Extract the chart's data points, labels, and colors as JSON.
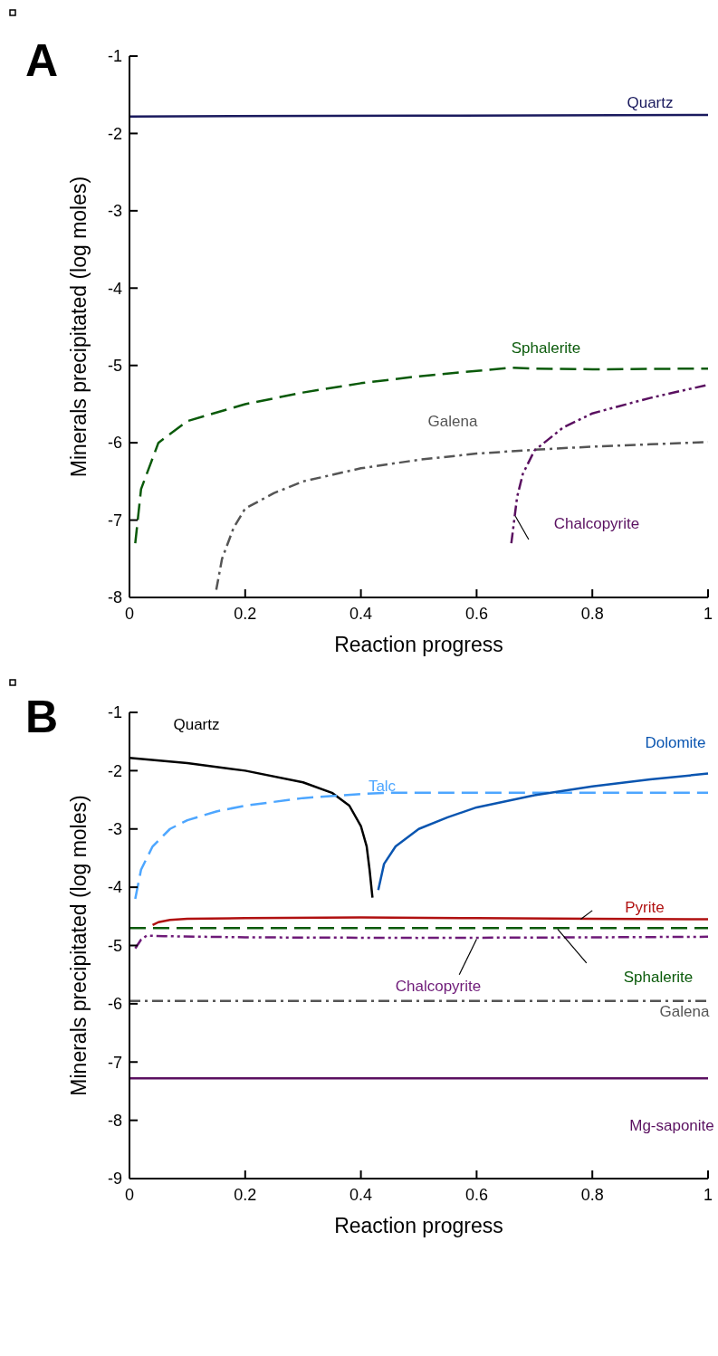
{
  "chart_data": [
    {
      "type": "line",
      "title": "A",
      "xlabel": "Reaction progress",
      "ylabel": "Minerals precipitated (log moles)",
      "xlim": [
        0,
        1
      ],
      "ylim": [
        -8,
        -1
      ],
      "xticks": [
        0,
        0.2,
        0.4,
        0.6,
        0.8,
        1
      ],
      "yticks": [
        -8,
        -7,
        -6,
        -5,
        -4,
        -3,
        -2,
        -1
      ],
      "series": [
        {
          "name": "Quartz",
          "color": "#1a1a5e",
          "line_style": "solid",
          "x": [
            0,
            0.5,
            1
          ],
          "values": [
            -1.78,
            -1.77,
            -1.76
          ]
        },
        {
          "name": "Sphalerite",
          "color": "#0a5a0a",
          "line_style": "dashed",
          "x": [
            0.01,
            0.02,
            0.05,
            0.1,
            0.2,
            0.3,
            0.4,
            0.5,
            0.6,
            0.66,
            0.7,
            0.8,
            1
          ],
          "values": [
            -7.3,
            -6.6,
            -6.0,
            -5.72,
            -5.5,
            -5.35,
            -5.23,
            -5.14,
            -5.07,
            -5.03,
            -5.04,
            -5.05,
            -5.04
          ]
        },
        {
          "name": "Galena",
          "color": "#555555",
          "line_style": "dashdot",
          "x": [
            0.15,
            0.16,
            0.18,
            0.2,
            0.25,
            0.3,
            0.4,
            0.5,
            0.6,
            0.7,
            0.8,
            0.9,
            1
          ],
          "values": [
            -7.9,
            -7.5,
            -7.1,
            -6.85,
            -6.65,
            -6.5,
            -6.33,
            -6.22,
            -6.14,
            -6.09,
            -6.05,
            -6.02,
            -5.99
          ]
        },
        {
          "name": "Chalcopyrite",
          "color": "#5a1060",
          "line_style": "dashdotdot",
          "x": [
            0.66,
            0.665,
            0.67,
            0.68,
            0.7,
            0.75,
            0.8,
            0.9,
            1
          ],
          "values": [
            -7.3,
            -7.0,
            -6.7,
            -6.4,
            -6.1,
            -5.8,
            -5.62,
            -5.42,
            -5.25
          ]
        },
        {
          "color": "#000000",
          "line_style": "solid",
          "x": [
            0.667,
            0.69
          ],
          "values": [
            -6.95,
            -7.25
          ]
        }
      ]
    },
    {
      "type": "line",
      "title": "B",
      "xlabel": "Reaction progress",
      "ylabel": "Minerals precipitated (log moles)",
      "xlim": [
        0,
        1
      ],
      "ylim": [
        -9,
        -1
      ],
      "xticks": [
        0,
        0.2,
        0.4,
        0.6,
        0.8,
        1
      ],
      "yticks": [
        -9,
        -8,
        -7,
        -6,
        -5,
        -4,
        -3,
        -2,
        -1
      ],
      "series": [
        {
          "name": "Quartz",
          "color": "#000000",
          "line_style": "solid",
          "x": [
            0,
            0.1,
            0.2,
            0.3,
            0.35,
            0.38,
            0.4,
            0.41,
            0.415,
            0.42
          ],
          "values": [
            -1.78,
            -1.87,
            -2.0,
            -2.2,
            -2.38,
            -2.6,
            -2.95,
            -3.3,
            -3.7,
            -4.18
          ]
        },
        {
          "name": "Talc",
          "color": "#4da6ff",
          "line_style": "dashed",
          "x": [
            0.01,
            0.02,
            0.04,
            0.07,
            0.1,
            0.15,
            0.2,
            0.3,
            0.4,
            0.45,
            1
          ],
          "values": [
            -4.2,
            -3.7,
            -3.3,
            -3.0,
            -2.85,
            -2.7,
            -2.6,
            -2.47,
            -2.4,
            -2.38,
            -2.38
          ]
        },
        {
          "name": "Dolomite",
          "color": "#0a55b0",
          "line_style": "solid",
          "x": [
            0.43,
            0.44,
            0.46,
            0.5,
            0.55,
            0.6,
            0.7,
            0.8,
            0.9,
            1
          ],
          "values": [
            -4.05,
            -3.6,
            -3.3,
            -3.0,
            -2.8,
            -2.63,
            -2.42,
            -2.27,
            -2.15,
            -2.05
          ]
        },
        {
          "name": "Pyrite",
          "color": "#b01010",
          "line_style": "solid",
          "x": [
            0.04,
            0.05,
            0.07,
            0.1,
            0.2,
            0.4,
            0.6,
            0.8,
            1
          ],
          "values": [
            -4.65,
            -4.6,
            -4.56,
            -4.54,
            -4.53,
            -4.52,
            -4.53,
            -4.54,
            -4.55
          ]
        },
        {
          "name": "Sphalerite",
          "color": "#0a5a0a",
          "line_style": "dashed",
          "x": [
            0,
            1
          ],
          "values": [
            -4.7,
            -4.7
          ]
        },
        {
          "name": "Chalcopyrite",
          "color": "#6e1a78",
          "line_style": "dashdotdot",
          "x": [
            0.01,
            0.02,
            0.03,
            0.06,
            0.2,
            0.5,
            0.8,
            1
          ],
          "values": [
            -5.05,
            -4.9,
            -4.83,
            -4.84,
            -4.86,
            -4.87,
            -4.86,
            -4.85
          ]
        },
        {
          "name": "Galena",
          "color": "#555555",
          "line_style": "dashdot",
          "x": [
            0,
            1
          ],
          "values": [
            -5.95,
            -5.95
          ]
        },
        {
          "name": "Mg-saponite",
          "color": "#5a1060",
          "line_style": "solid",
          "x": [
            0,
            1
          ],
          "values": [
            -7.28,
            -7.28
          ]
        },
        {
          "color": "#000000",
          "line_style": "solid",
          "x": [
            0.78,
            0.8
          ],
          "values": [
            -4.55,
            -4.4
          ]
        },
        {
          "color": "#000000",
          "line_style": "solid",
          "x": [
            0.74,
            0.79
          ],
          "values": [
            -4.72,
            -5.3
          ]
        },
        {
          "color": "#000000",
          "line_style": "solid",
          "x": [
            0.6,
            0.57
          ],
          "values": [
            -4.89,
            -5.5
          ]
        }
      ]
    }
  ]
}
